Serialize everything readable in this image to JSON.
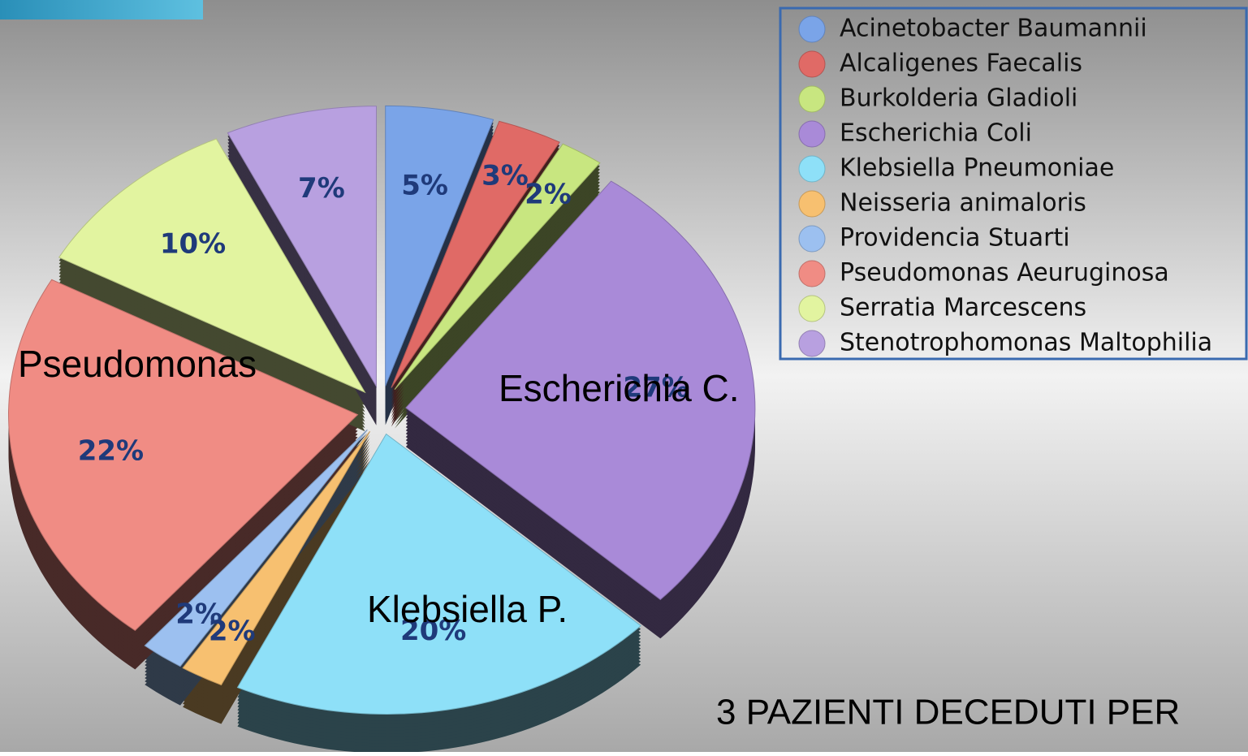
{
  "chart_data": {
    "type": "pie",
    "categories": [
      "Acinetobacter Baumannii",
      "Alcaligenes Faecalis",
      "Burkolderia Gladioli",
      "Escherichia Coli",
      "Klebsiella Pneumoniae",
      "Neisseria animaloris",
      "Providencia Stuarti",
      "Pseudomonas Aeuruginosa",
      "Serratia Marcescens",
      "Stenotrophomonas Maltophilia"
    ],
    "values": [
      5,
      3,
      2,
      27,
      20,
      2,
      2,
      22,
      10,
      7
    ],
    "value_labels": [
      "5%",
      "3%",
      "2%",
      "27%",
      "20%",
      "2%",
      "2%",
      "22%",
      "10%",
      "7%"
    ],
    "colors": [
      "#7aa4e8",
      "#e06a66",
      "#c8e680",
      "#a98ad8",
      "#8ee0f8",
      "#f7c070",
      "#9cc0f0",
      "#f08c84",
      "#e2f4a0",
      "#b8a0e0"
    ],
    "legend": "top-right",
    "annotations": [
      "Pseudomonas",
      "Escherichia C.",
      "Klebsiella P."
    ],
    "note": "3 PAZIENTI DECEDUTI PER"
  }
}
